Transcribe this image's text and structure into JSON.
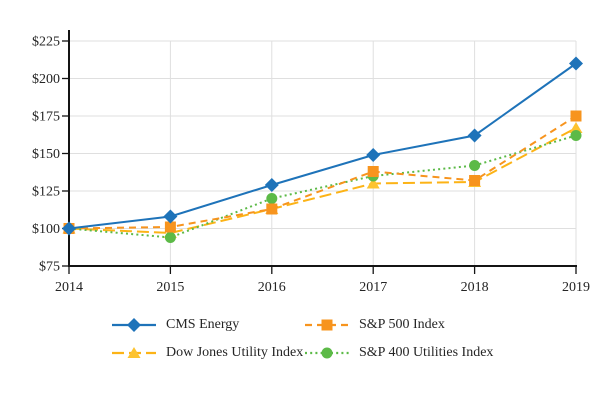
{
  "chart_data": {
    "type": "line",
    "title": "",
    "xlabel": "",
    "ylabel": "",
    "x": [
      "2014",
      "2015",
      "2016",
      "2017",
      "2018",
      "2019"
    ],
    "y_ticks": [
      75,
      100,
      125,
      150,
      175,
      200,
      225
    ],
    "y_tick_prefix": "$",
    "ylim": [
      75,
      232
    ],
    "grid": true,
    "legend_position": "bottom",
    "series": [
      {
        "name": "CMS Energy",
        "values": [
          100,
          108,
          129,
          149,
          162,
          210
        ],
        "color": "#1e73b9",
        "marker": "diamond",
        "marker_color": "#1e73b9",
        "line_style": "solid"
      },
      {
        "name": "S&P 500 Index",
        "values": [
          100,
          101,
          113,
          138,
          132,
          175
        ],
        "color": "#f7941e",
        "marker": "square",
        "marker_color": "#f7941e",
        "line_style": "dashed"
      },
      {
        "name": "Dow Jones Utility Index",
        "values": [
          100,
          97,
          113,
          130,
          131,
          167
        ],
        "color": "#fcb316",
        "marker": "triangle",
        "marker_color": "#fdc32f",
        "line_style": "long-dash"
      },
      {
        "name": "S&P 400 Utilities Index",
        "values": [
          100,
          94,
          120,
          135,
          142,
          162
        ],
        "color": "#5cba47",
        "marker": "circle",
        "marker_color": "#5cba47",
        "line_style": "dotted"
      }
    ]
  },
  "colors": {
    "background": "#ffffff",
    "axis": "#141414",
    "grid": "#dfdfdf",
    "text": "#252525"
  }
}
